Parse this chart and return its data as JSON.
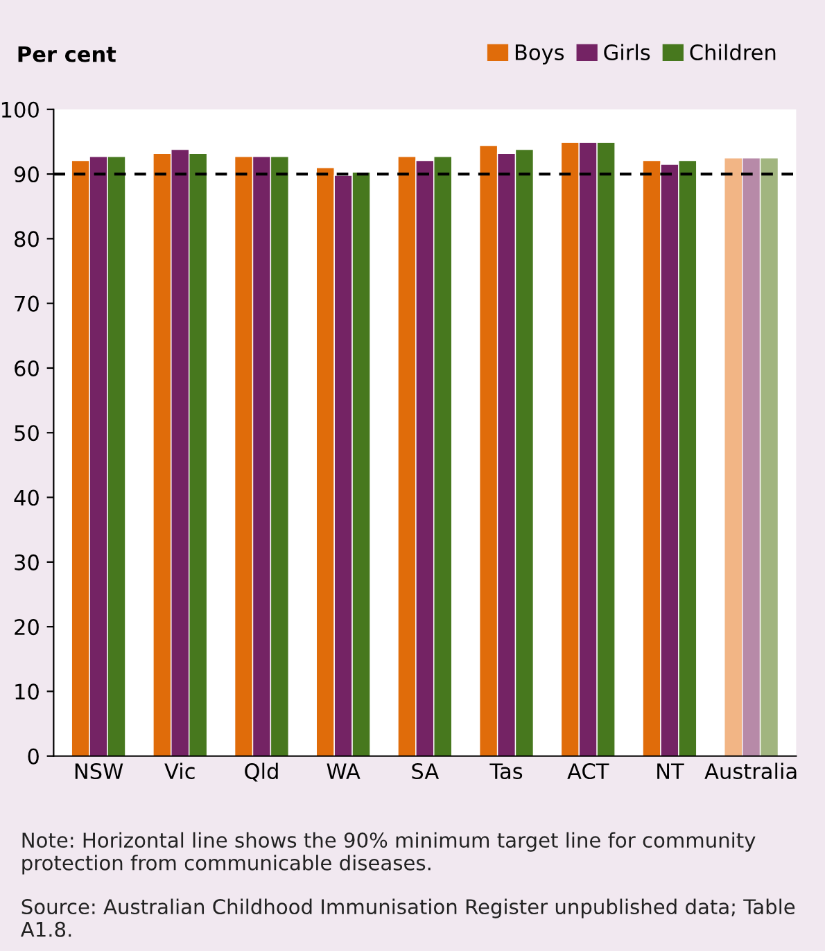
{
  "chart_data": {
    "type": "bar",
    "title": "Per cent",
    "categories": [
      "NSW",
      "Vic",
      "Qld",
      "WA",
      "SA",
      "Tas",
      "ACT",
      "NT",
      "Australia"
    ],
    "series": [
      {
        "name": "Boys",
        "color": "#e06c0a",
        "colors": [
          "#e06c0a",
          "#e06c0a",
          "#e06c0a",
          "#e06c0a",
          "#e06c0a",
          "#e06c0a",
          "#e06c0a",
          "#e06c0a",
          "#f2b585"
        ],
        "values": [
          92.1,
          93.2,
          92.7,
          91.0,
          92.7,
          94.4,
          94.9,
          92.1,
          92.5
        ]
      },
      {
        "name": "Girls",
        "color": "#742364",
        "colors": [
          "#742364",
          "#742364",
          "#742364",
          "#742364",
          "#742364",
          "#742364",
          "#742364",
          "#742364",
          "#b78aa8"
        ],
        "values": [
          92.7,
          93.8,
          92.7,
          89.8,
          92.1,
          93.2,
          94.9,
          91.5,
          92.5
        ]
      },
      {
        "name": "Children",
        "color": "#47781e",
        "colors": [
          "#47781e",
          "#47781e",
          "#47781e",
          "#47781e",
          "#47781e",
          "#47781e",
          "#47781e",
          "#47781e",
          "#a1b57f"
        ],
        "values": [
          92.7,
          93.2,
          92.7,
          90.3,
          92.7,
          93.8,
          94.9,
          92.1,
          92.5
        ]
      }
    ],
    "ylim": [
      0,
      100
    ],
    "yticks": [
      0,
      10,
      20,
      30,
      40,
      50,
      60,
      70,
      80,
      90,
      100
    ],
    "ref_lines": [
      {
        "axis": "y",
        "value": 90,
        "color": "#000000",
        "line_style": "dashed"
      }
    ],
    "legend": "top right",
    "grid": false,
    "annotations": [
      "Note: Horizontal line shows the 90% minimum target line for community protection from communicable diseases.",
      "Source: Australian Childhood Immunisation Register unpublished data; Table A1.8."
    ]
  }
}
